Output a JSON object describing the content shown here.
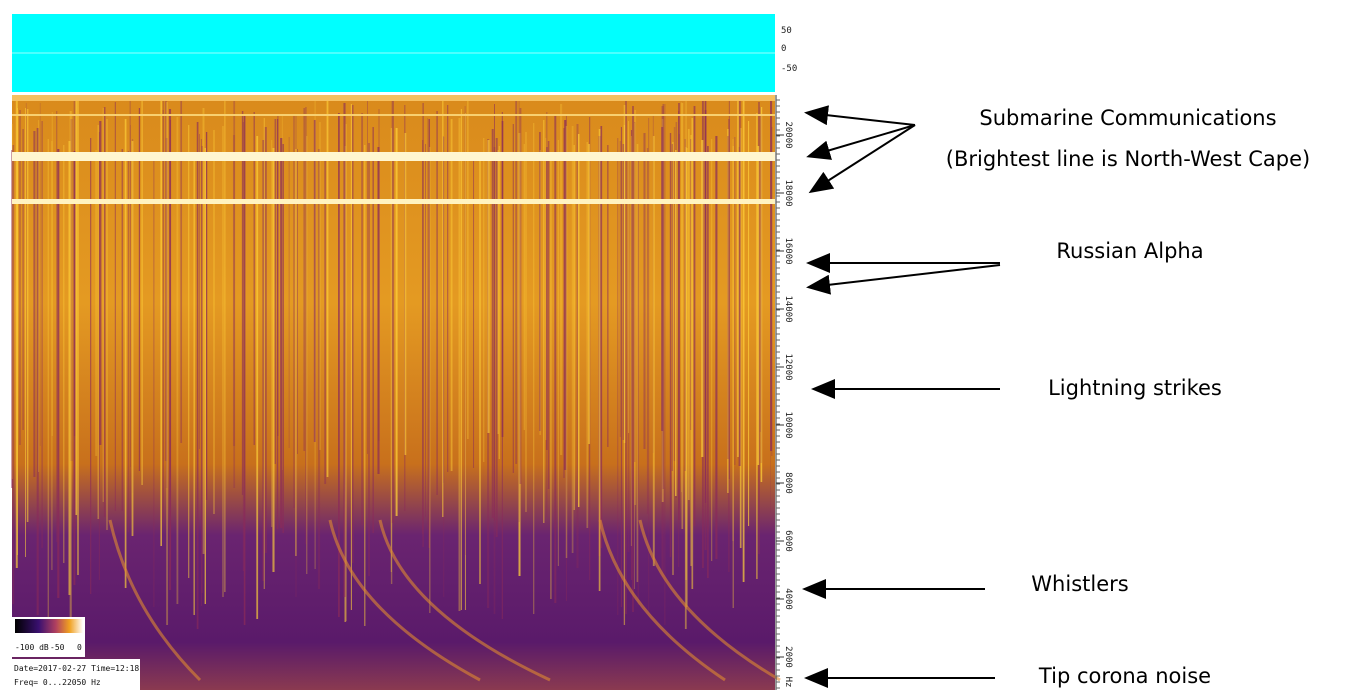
{
  "spectrogram": {
    "level_scale": [
      "50",
      "0",
      "-50"
    ],
    "freq_axis": [
      "20000",
      "18000",
      "16000",
      "14000",
      "12000",
      "10000",
      "8000",
      "6000",
      "4000",
      "2000"
    ],
    "freq_unit": "Hz",
    "colorbar_labels": [
      "-100 dB",
      "-50",
      "0"
    ],
    "info": [
      "Date=2017-02-27 Time=12:18",
      "Freq= 0...22050 Hz"
    ]
  },
  "annotations": [
    {
      "lines": [
        "Submarine Communications",
        "(Brightest line is North-West Cape)"
      ]
    },
    {
      "lines": [
        "Russian Alpha"
      ]
    },
    {
      "lines": [
        "Lightning strikes"
      ]
    },
    {
      "lines": [
        "Whistlers"
      ]
    },
    {
      "lines": [
        "Tip corona noise"
      ]
    }
  ]
}
